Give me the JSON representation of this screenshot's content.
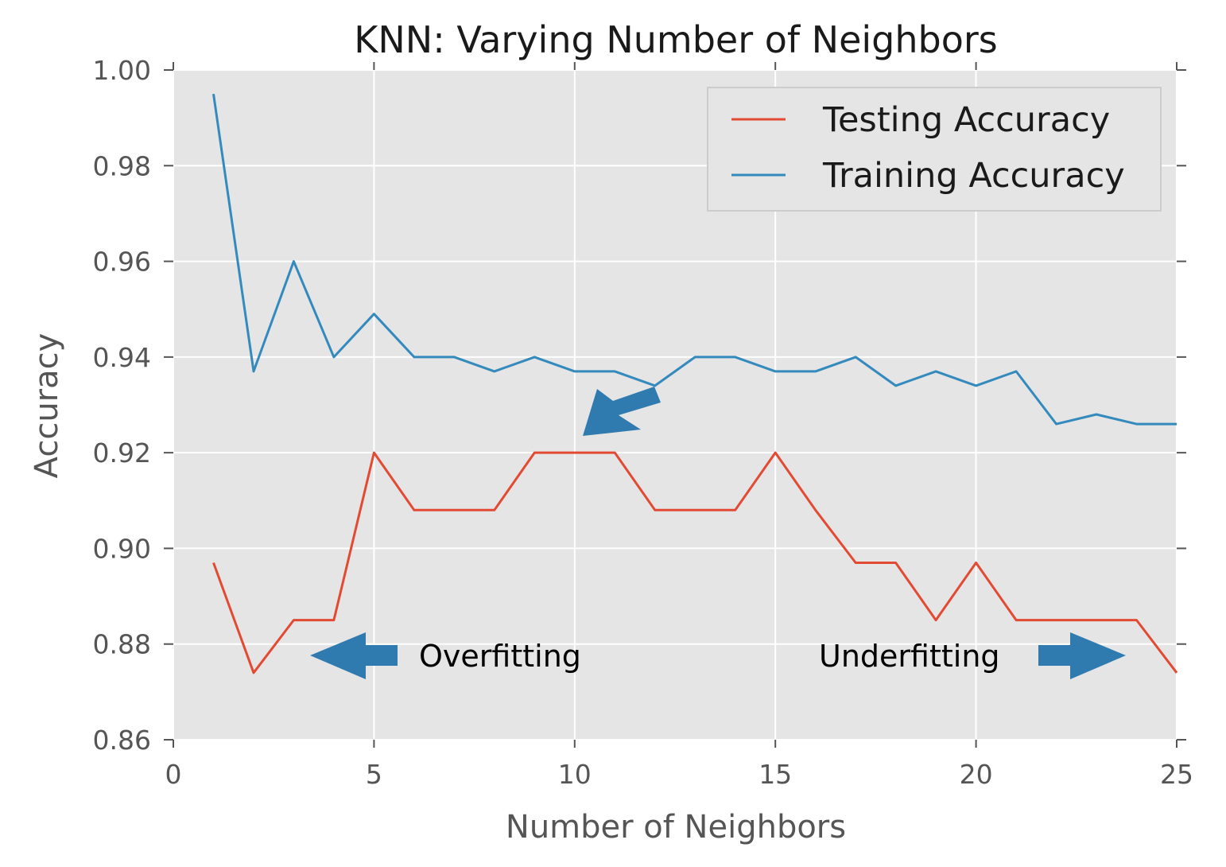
{
  "chart_data": {
    "type": "line",
    "title": "KNN: Varying Number of Neighbors",
    "xlabel": "Number of Neighbors",
    "ylabel": "Accuracy",
    "xlim": [
      0,
      25
    ],
    "ylim": [
      0.86,
      1.0
    ],
    "xticks": [
      0,
      5,
      10,
      15,
      20,
      25
    ],
    "yticks": [
      0.86,
      0.88,
      0.9,
      0.92,
      0.94,
      0.96,
      0.98,
      1.0
    ],
    "xtick_labels": [
      "0",
      "5",
      "10",
      "15",
      "20",
      "25"
    ],
    "ytick_labels": [
      "0.86",
      "0.88",
      "0.90",
      "0.92",
      "0.94",
      "0.96",
      "0.98",
      "1.00"
    ],
    "grid": true,
    "legend_position": "top-right",
    "x": [
      1,
      2,
      3,
      4,
      5,
      6,
      7,
      8,
      9,
      10,
      11,
      12,
      13,
      14,
      15,
      16,
      17,
      18,
      19,
      20,
      21,
      22,
      23,
      24,
      25
    ],
    "series": [
      {
        "name": "Testing Accuracy",
        "color": "#e24a33",
        "values": [
          0.897,
          0.874,
          0.885,
          0.885,
          0.92,
          0.908,
          0.908,
          0.908,
          0.92,
          0.92,
          0.92,
          0.908,
          0.908,
          0.908,
          0.92,
          0.908,
          0.897,
          0.897,
          0.885,
          0.897,
          0.885,
          0.885,
          0.885,
          0.885,
          0.874
        ]
      },
      {
        "name": "Training Accuracy",
        "color": "#348abd",
        "values": [
          0.995,
          0.937,
          0.96,
          0.94,
          0.949,
          0.94,
          0.94,
          0.937,
          0.94,
          0.937,
          0.937,
          0.934,
          0.94,
          0.94,
          0.937,
          0.937,
          0.94,
          0.934,
          0.937,
          0.934,
          0.937,
          0.926,
          0.928,
          0.926,
          0.926
        ]
      }
    ],
    "annotations": [
      {
        "text": "Overfitting",
        "x": 6.2,
        "y": 0.877,
        "arrow": "left"
      },
      {
        "text": "Underfitting",
        "x": 16.2,
        "y": 0.877,
        "arrow": "right"
      }
    ]
  },
  "colors": {
    "plot_background": "#e5e5e5",
    "grid": "#ffffff",
    "arrow": "#2f7bb0"
  }
}
